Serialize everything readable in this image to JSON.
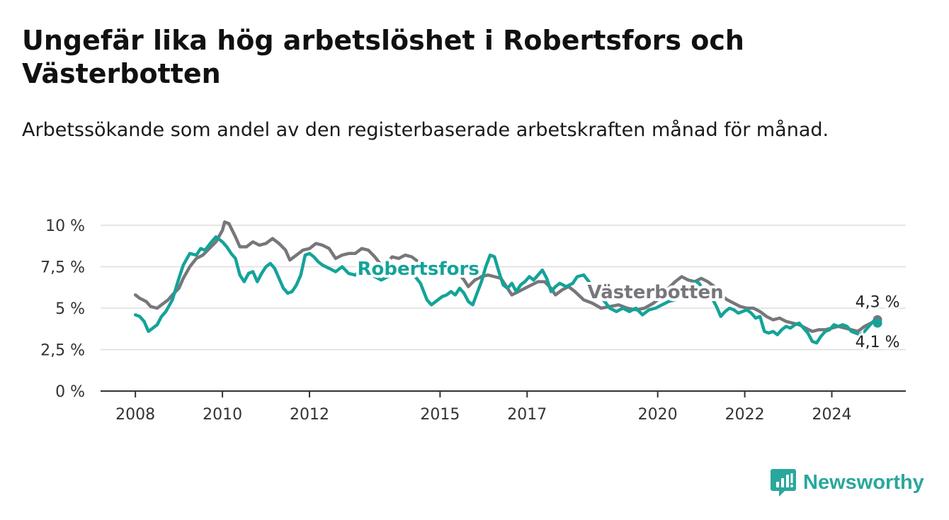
{
  "title": "Ungefär lika hög arbetslöshet i Robertsfors och Västerbotten",
  "subtitle": "Arbetssökande som andel av den registerbaserade arbetskraften månad för månad.",
  "brand": "Newsworthy",
  "colors": {
    "robertsfors": "#14a399",
    "vasterbotten": "#77767b",
    "grid": "#dddddd",
    "axis": "#333333"
  },
  "chart_data": {
    "type": "line",
    "y_ticks": [
      "0 %",
      "2,5 %",
      "5 %",
      "7,5 %",
      "10 %"
    ],
    "y_tick_values": [
      0,
      2.5,
      5,
      7.5,
      10
    ],
    "x_ticks": [
      "2008",
      "2010",
      "2012",
      "2015",
      "2017",
      "2020",
      "2022",
      "2024"
    ],
    "x_tick_values": [
      2008,
      2010,
      2012,
      2015,
      2017,
      2020,
      2022,
      2024
    ],
    "xlim": [
      2007.2,
      2025.7
    ],
    "ylim": [
      0,
      10
    ],
    "grid": true,
    "end_labels": {
      "vasterbotten": "4,3 %",
      "robertsfors": "4,1 %"
    },
    "series": [
      {
        "name": "Västerbotten",
        "key": "vasterbotten",
        "points": [
          [
            2008.0,
            5.8
          ],
          [
            2008.1,
            5.6
          ],
          [
            2008.25,
            5.4
          ],
          [
            2008.35,
            5.1
          ],
          [
            2008.5,
            5.0
          ],
          [
            2008.6,
            5.2
          ],
          [
            2008.75,
            5.5
          ],
          [
            2008.85,
            5.8
          ],
          [
            2009.0,
            6.2
          ],
          [
            2009.1,
            6.8
          ],
          [
            2009.25,
            7.5
          ],
          [
            2009.4,
            8.0
          ],
          [
            2009.55,
            8.2
          ],
          [
            2009.7,
            8.6
          ],
          [
            2009.85,
            9.0
          ],
          [
            2010.0,
            9.7
          ],
          [
            2010.05,
            10.2
          ],
          [
            2010.15,
            10.1
          ],
          [
            2010.3,
            9.3
          ],
          [
            2010.4,
            8.7
          ],
          [
            2010.55,
            8.7
          ],
          [
            2010.7,
            9.0
          ],
          [
            2010.85,
            8.8
          ],
          [
            2011.0,
            8.9
          ],
          [
            2011.15,
            9.2
          ],
          [
            2011.3,
            8.9
          ],
          [
            2011.45,
            8.5
          ],
          [
            2011.55,
            7.9
          ],
          [
            2011.7,
            8.2
          ],
          [
            2011.85,
            8.5
          ],
          [
            2012.0,
            8.6
          ],
          [
            2012.15,
            8.9
          ],
          [
            2012.3,
            8.8
          ],
          [
            2012.45,
            8.6
          ],
          [
            2012.6,
            8.0
          ],
          [
            2012.75,
            8.2
          ],
          [
            2012.9,
            8.3
          ],
          [
            2013.05,
            8.3
          ],
          [
            2013.2,
            8.6
          ],
          [
            2013.35,
            8.5
          ],
          [
            2013.5,
            8.1
          ],
          [
            2013.65,
            7.6
          ],
          [
            2013.8,
            7.8
          ],
          [
            2013.9,
            8.1
          ],
          [
            2014.05,
            8.0
          ],
          [
            2014.2,
            8.2
          ],
          [
            2014.35,
            8.1
          ],
          [
            2014.5,
            7.8
          ],
          [
            2014.65,
            7.3
          ],
          [
            2014.8,
            7.0
          ],
          [
            2014.95,
            7.1
          ],
          [
            2015.1,
            7.3
          ],
          [
            2015.25,
            7.4
          ],
          [
            2015.4,
            7.2
          ],
          [
            2015.55,
            6.7
          ],
          [
            2015.65,
            6.3
          ],
          [
            2015.8,
            6.7
          ],
          [
            2015.95,
            6.9
          ],
          [
            2016.1,
            7.0
          ],
          [
            2016.25,
            6.9
          ],
          [
            2016.4,
            6.8
          ],
          [
            2016.55,
            6.2
          ],
          [
            2016.65,
            5.8
          ],
          [
            2016.8,
            6.0
          ],
          [
            2016.95,
            6.2
          ],
          [
            2017.1,
            6.4
          ],
          [
            2017.25,
            6.6
          ],
          [
            2017.4,
            6.6
          ],
          [
            2017.55,
            6.2
          ],
          [
            2017.65,
            5.8
          ],
          [
            2017.8,
            6.1
          ],
          [
            2017.95,
            6.3
          ],
          [
            2018.1,
            6.0
          ],
          [
            2018.3,
            5.5
          ],
          [
            2018.5,
            5.3
          ],
          [
            2018.7,
            5.0
          ],
          [
            2018.9,
            5.1
          ],
          [
            2019.1,
            5.2
          ],
          [
            2019.3,
            5.0
          ],
          [
            2019.5,
            4.9
          ],
          [
            2019.7,
            5.0
          ],
          [
            2019.9,
            5.3
          ],
          [
            2020.1,
            5.7
          ],
          [
            2020.25,
            6.2
          ],
          [
            2020.4,
            6.6
          ],
          [
            2020.55,
            6.9
          ],
          [
            2020.7,
            6.7
          ],
          [
            2020.85,
            6.6
          ],
          [
            2021.0,
            6.8
          ],
          [
            2021.15,
            6.6
          ],
          [
            2021.3,
            6.3
          ],
          [
            2021.45,
            5.8
          ],
          [
            2021.6,
            5.5
          ],
          [
            2021.75,
            5.3
          ],
          [
            2021.9,
            5.1
          ],
          [
            2022.05,
            5.0
          ],
          [
            2022.2,
            5.0
          ],
          [
            2022.35,
            4.8
          ],
          [
            2022.5,
            4.5
          ],
          [
            2022.65,
            4.3
          ],
          [
            2022.8,
            4.4
          ],
          [
            2022.95,
            4.2
          ],
          [
            2023.1,
            4.1
          ],
          [
            2023.25,
            4.0
          ],
          [
            2023.4,
            3.8
          ],
          [
            2023.55,
            3.6
          ],
          [
            2023.7,
            3.7
          ],
          [
            2023.85,
            3.7
          ],
          [
            2024.0,
            3.8
          ],
          [
            2024.15,
            3.9
          ],
          [
            2024.3,
            3.8
          ],
          [
            2024.45,
            3.7
          ],
          [
            2024.6,
            3.6
          ],
          [
            2024.75,
            3.9
          ],
          [
            2024.9,
            4.1
          ],
          [
            2025.05,
            4.3
          ]
        ]
      },
      {
        "name": "Robertsfors",
        "key": "robertsfors",
        "points": [
          [
            2008.0,
            4.6
          ],
          [
            2008.1,
            4.5
          ],
          [
            2008.2,
            4.2
          ],
          [
            2008.3,
            3.6
          ],
          [
            2008.4,
            3.8
          ],
          [
            2008.5,
            4.0
          ],
          [
            2008.6,
            4.5
          ],
          [
            2008.7,
            4.8
          ],
          [
            2008.85,
            5.5
          ],
          [
            2009.0,
            6.8
          ],
          [
            2009.1,
            7.6
          ],
          [
            2009.25,
            8.3
          ],
          [
            2009.4,
            8.2
          ],
          [
            2009.5,
            8.6
          ],
          [
            2009.6,
            8.5
          ],
          [
            2009.75,
            9.0
          ],
          [
            2009.85,
            9.3
          ],
          [
            2010.0,
            9.0
          ],
          [
            2010.1,
            8.7
          ],
          [
            2010.2,
            8.3
          ],
          [
            2010.3,
            8.0
          ],
          [
            2010.4,
            7.0
          ],
          [
            2010.5,
            6.6
          ],
          [
            2010.6,
            7.1
          ],
          [
            2010.7,
            7.2
          ],
          [
            2010.8,
            6.6
          ],
          [
            2010.9,
            7.1
          ],
          [
            2011.0,
            7.5
          ],
          [
            2011.1,
            7.7
          ],
          [
            2011.2,
            7.4
          ],
          [
            2011.3,
            6.8
          ],
          [
            2011.4,
            6.2
          ],
          [
            2011.5,
            5.9
          ],
          [
            2011.6,
            6.0
          ],
          [
            2011.7,
            6.4
          ],
          [
            2011.8,
            7.0
          ],
          [
            2011.9,
            8.2
          ],
          [
            2012.0,
            8.3
          ],
          [
            2012.1,
            8.1
          ],
          [
            2012.2,
            7.8
          ],
          [
            2012.3,
            7.6
          ],
          [
            2012.45,
            7.4
          ],
          [
            2012.6,
            7.2
          ],
          [
            2012.75,
            7.5
          ],
          [
            2012.9,
            7.1
          ],
          [
            2013.05,
            7.0
          ],
          [
            2013.2,
            7.3
          ],
          [
            2013.35,
            7.2
          ],
          [
            2013.5,
            6.9
          ],
          [
            2013.65,
            6.7
          ],
          [
            2013.8,
            6.9
          ],
          [
            2013.95,
            7.0
          ],
          [
            2014.1,
            7.2
          ],
          [
            2014.25,
            7.3
          ],
          [
            2014.4,
            7.0
          ],
          [
            2014.55,
            6.5
          ],
          [
            2014.7,
            5.5
          ],
          [
            2014.8,
            5.2
          ],
          [
            2014.95,
            5.5
          ],
          [
            2015.05,
            5.7
          ],
          [
            2015.15,
            5.8
          ],
          [
            2015.25,
            6.0
          ],
          [
            2015.35,
            5.8
          ],
          [
            2015.45,
            6.2
          ],
          [
            2015.55,
            5.9
          ],
          [
            2015.65,
            5.4
          ],
          [
            2015.75,
            5.2
          ],
          [
            2015.85,
            5.9
          ],
          [
            2015.95,
            6.6
          ],
          [
            2016.05,
            7.5
          ],
          [
            2016.15,
            8.2
          ],
          [
            2016.25,
            8.1
          ],
          [
            2016.35,
            7.2
          ],
          [
            2016.45,
            6.4
          ],
          [
            2016.55,
            6.2
          ],
          [
            2016.65,
            6.5
          ],
          [
            2016.75,
            6.0
          ],
          [
            2016.85,
            6.4
          ],
          [
            2016.95,
            6.6
          ],
          [
            2017.05,
            6.9
          ],
          [
            2017.15,
            6.7
          ],
          [
            2017.25,
            7.0
          ],
          [
            2017.35,
            7.3
          ],
          [
            2017.45,
            6.8
          ],
          [
            2017.55,
            6.0
          ],
          [
            2017.65,
            6.3
          ],
          [
            2017.75,
            6.5
          ],
          [
            2017.9,
            6.3
          ],
          [
            2018.05,
            6.5
          ],
          [
            2018.15,
            6.9
          ],
          [
            2018.3,
            7.0
          ],
          [
            2018.45,
            6.5
          ],
          [
            2018.6,
            6.0
          ],
          [
            2018.75,
            5.5
          ],
          [
            2018.9,
            5.0
          ],
          [
            2019.05,
            4.8
          ],
          [
            2019.2,
            5.0
          ],
          [
            2019.35,
            4.8
          ],
          [
            2019.5,
            5.0
          ],
          [
            2019.65,
            4.6
          ],
          [
            2019.8,
            4.9
          ],
          [
            2019.95,
            5.0
          ],
          [
            2020.1,
            5.2
          ],
          [
            2020.25,
            5.4
          ],
          [
            2020.4,
            5.5
          ],
          [
            2020.55,
            6.0
          ],
          [
            2020.7,
            6.3
          ],
          [
            2020.85,
            6.6
          ],
          [
            2020.95,
            6.5
          ],
          [
            2021.05,
            6.1
          ],
          [
            2021.15,
            5.8
          ],
          [
            2021.25,
            5.6
          ],
          [
            2021.35,
            5.1
          ],
          [
            2021.45,
            4.5
          ],
          [
            2021.55,
            4.8
          ],
          [
            2021.65,
            5.0
          ],
          [
            2021.75,
            4.9
          ],
          [
            2021.85,
            4.7
          ],
          [
            2021.95,
            4.8
          ],
          [
            2022.05,
            4.9
          ],
          [
            2022.15,
            4.7
          ],
          [
            2022.25,
            4.4
          ],
          [
            2022.35,
            4.5
          ],
          [
            2022.45,
            3.6
          ],
          [
            2022.55,
            3.5
          ],
          [
            2022.65,
            3.6
          ],
          [
            2022.75,
            3.4
          ],
          [
            2022.85,
            3.7
          ],
          [
            2022.95,
            3.9
          ],
          [
            2023.05,
            3.8
          ],
          [
            2023.15,
            4.0
          ],
          [
            2023.25,
            4.1
          ],
          [
            2023.35,
            3.8
          ],
          [
            2023.45,
            3.5
          ],
          [
            2023.55,
            3.0
          ],
          [
            2023.65,
            2.9
          ],
          [
            2023.75,
            3.3
          ],
          [
            2023.85,
            3.6
          ],
          [
            2023.95,
            3.7
          ],
          [
            2024.05,
            4.0
          ],
          [
            2024.15,
            3.9
          ],
          [
            2024.25,
            4.0
          ],
          [
            2024.35,
            3.9
          ],
          [
            2024.45,
            3.6
          ],
          [
            2024.55,
            3.5
          ],
          [
            2024.65,
            3.4
          ],
          [
            2024.75,
            3.6
          ],
          [
            2024.85,
            3.9
          ],
          [
            2024.95,
            4.2
          ],
          [
            2025.05,
            4.1
          ]
        ]
      }
    ],
    "series_labels": [
      {
        "text": "Robertsfors",
        "key": "robertsfors"
      },
      {
        "text": "Västerbotten",
        "key": "vasterbotten"
      }
    ]
  }
}
